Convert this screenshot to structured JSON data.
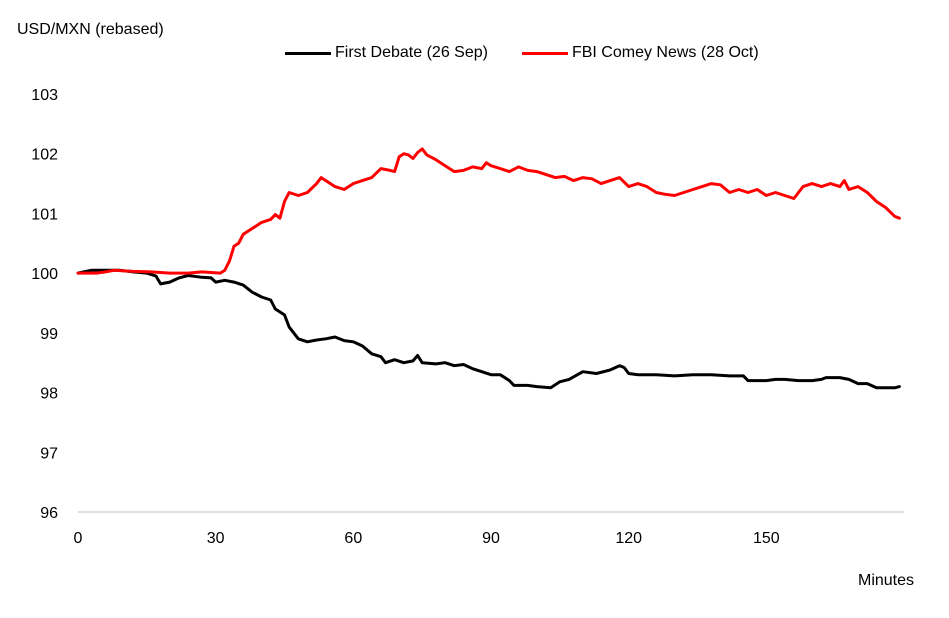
{
  "chart_data": {
    "type": "line",
    "ylabel": "USD/MXN (rebased)",
    "xlabel": "Minutes",
    "xlim": [
      0,
      180
    ],
    "ylim": [
      96,
      103
    ],
    "xticks": [
      0,
      30,
      60,
      90,
      120,
      150
    ],
    "yticks": [
      96,
      97,
      98,
      99,
      100,
      101,
      102,
      103
    ],
    "grid": false,
    "legend": "top-center",
    "series": [
      {
        "name": "First Debate (26 Sep)",
        "color": "#000000",
        "points": [
          [
            0,
            100
          ],
          [
            3,
            100.05
          ],
          [
            6,
            100.05
          ],
          [
            9,
            100.05
          ],
          [
            12,
            100.02
          ],
          [
            15,
            100
          ],
          [
            17,
            99.95
          ],
          [
            18,
            99.82
          ],
          [
            20,
            99.85
          ],
          [
            22,
            99.92
          ],
          [
            24,
            99.96
          ],
          [
            27,
            99.93
          ],
          [
            29,
            99.92
          ],
          [
            30,
            99.85
          ],
          [
            32,
            99.88
          ],
          [
            34,
            99.85
          ],
          [
            36,
            99.8
          ],
          [
            38,
            99.68
          ],
          [
            40,
            99.6
          ],
          [
            42,
            99.55
          ],
          [
            43,
            99.4
          ],
          [
            45,
            99.3
          ],
          [
            46,
            99.1
          ],
          [
            48,
            98.9
          ],
          [
            50,
            98.85
          ],
          [
            52,
            98.88
          ],
          [
            54,
            98.9
          ],
          [
            56,
            98.93
          ],
          [
            58,
            98.87
          ],
          [
            60,
            98.85
          ],
          [
            62,
            98.78
          ],
          [
            64,
            98.65
          ],
          [
            66,
            98.6
          ],
          [
            67,
            98.5
          ],
          [
            69,
            98.55
          ],
          [
            71,
            98.5
          ],
          [
            73,
            98.53
          ],
          [
            74,
            98.62
          ],
          [
            75,
            98.5
          ],
          [
            78,
            98.48
          ],
          [
            80,
            98.5
          ],
          [
            82,
            98.45
          ],
          [
            84,
            98.47
          ],
          [
            86,
            98.4
          ],
          [
            88,
            98.35
          ],
          [
            90,
            98.3
          ],
          [
            92,
            98.3
          ],
          [
            94,
            98.2
          ],
          [
            95,
            98.12
          ],
          [
            98,
            98.12
          ],
          [
            100,
            98.1
          ],
          [
            103,
            98.08
          ],
          [
            105,
            98.18
          ],
          [
            107,
            98.22
          ],
          [
            110,
            98.35
          ],
          [
            113,
            98.32
          ],
          [
            116,
            98.38
          ],
          [
            118,
            98.45
          ],
          [
            119,
            98.42
          ],
          [
            120,
            98.32
          ],
          [
            122,
            98.3
          ],
          [
            126,
            98.3
          ],
          [
            130,
            98.28
          ],
          [
            134,
            98.3
          ],
          [
            138,
            98.3
          ],
          [
            142,
            98.28
          ],
          [
            145,
            98.28
          ],
          [
            146,
            98.2
          ],
          [
            150,
            98.2
          ],
          [
            152,
            98.22
          ],
          [
            154,
            98.22
          ],
          [
            157,
            98.2
          ],
          [
            160,
            98.2
          ],
          [
            162,
            98.22
          ],
          [
            163,
            98.25
          ],
          [
            166,
            98.25
          ],
          [
            168,
            98.22
          ],
          [
            170,
            98.15
          ],
          [
            172,
            98.15
          ],
          [
            174,
            98.08
          ],
          [
            176,
            98.08
          ],
          [
            178,
            98.08
          ],
          [
            179,
            98.1
          ]
        ]
      },
      {
        "name": "FBI Comey News (28 Oct)",
        "color": "#ff0000",
        "points": [
          [
            0,
            100
          ],
          [
            4,
            100
          ],
          [
            6,
            100.02
          ],
          [
            8,
            100.05
          ],
          [
            12,
            100.03
          ],
          [
            16,
            100.02
          ],
          [
            20,
            100
          ],
          [
            24,
            100
          ],
          [
            27,
            100.02
          ],
          [
            31,
            100
          ],
          [
            32,
            100.05
          ],
          [
            33,
            100.2
          ],
          [
            34,
            100.45
          ],
          [
            35,
            100.5
          ],
          [
            36,
            100.65
          ],
          [
            38,
            100.75
          ],
          [
            40,
            100.85
          ],
          [
            42,
            100.9
          ],
          [
            43,
            100.98
          ],
          [
            44,
            100.92
          ],
          [
            45,
            101.2
          ],
          [
            46,
            101.35
          ],
          [
            48,
            101.3
          ],
          [
            50,
            101.35
          ],
          [
            52,
            101.5
          ],
          [
            53,
            101.6
          ],
          [
            54,
            101.55
          ],
          [
            56,
            101.45
          ],
          [
            58,
            101.4
          ],
          [
            60,
            101.5
          ],
          [
            62,
            101.55
          ],
          [
            64,
            101.6
          ],
          [
            66,
            101.75
          ],
          [
            68,
            101.72
          ],
          [
            69,
            101.7
          ],
          [
            70,
            101.95
          ],
          [
            71,
            102
          ],
          [
            72,
            101.98
          ],
          [
            73,
            101.92
          ],
          [
            74,
            102.02
          ],
          [
            75,
            102.08
          ],
          [
            76,
            101.98
          ],
          [
            78,
            101.9
          ],
          [
            80,
            101.8
          ],
          [
            82,
            101.7
          ],
          [
            84,
            101.72
          ],
          [
            86,
            101.78
          ],
          [
            88,
            101.75
          ],
          [
            89,
            101.85
          ],
          [
            90,
            101.8
          ],
          [
            92,
            101.75
          ],
          [
            94,
            101.7
          ],
          [
            96,
            101.78
          ],
          [
            98,
            101.72
          ],
          [
            100,
            101.7
          ],
          [
            102,
            101.65
          ],
          [
            104,
            101.6
          ],
          [
            106,
            101.62
          ],
          [
            108,
            101.55
          ],
          [
            110,
            101.6
          ],
          [
            112,
            101.58
          ],
          [
            114,
            101.5
          ],
          [
            116,
            101.55
          ],
          [
            118,
            101.6
          ],
          [
            120,
            101.45
          ],
          [
            122,
            101.5
          ],
          [
            124,
            101.45
          ],
          [
            126,
            101.35
          ],
          [
            128,
            101.32
          ],
          [
            130,
            101.3
          ],
          [
            132,
            101.35
          ],
          [
            134,
            101.4
          ],
          [
            136,
            101.45
          ],
          [
            138,
            101.5
          ],
          [
            140,
            101.48
          ],
          [
            142,
            101.35
          ],
          [
            144,
            101.4
          ],
          [
            146,
            101.35
          ],
          [
            148,
            101.4
          ],
          [
            150,
            101.3
          ],
          [
            152,
            101.35
          ],
          [
            154,
            101.3
          ],
          [
            156,
            101.25
          ],
          [
            158,
            101.45
          ],
          [
            160,
            101.5
          ],
          [
            162,
            101.45
          ],
          [
            164,
            101.5
          ],
          [
            166,
            101.45
          ],
          [
            167,
            101.55
          ],
          [
            168,
            101.4
          ],
          [
            170,
            101.45
          ],
          [
            172,
            101.35
          ],
          [
            174,
            101.2
          ],
          [
            176,
            101.1
          ],
          [
            178,
            100.95
          ],
          [
            179,
            100.92
          ]
        ]
      }
    ]
  }
}
